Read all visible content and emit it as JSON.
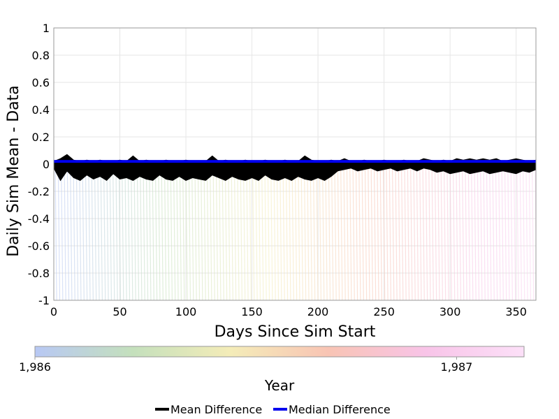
{
  "chart_data": {
    "type": "line",
    "xlabel": "Days Since Sim Start",
    "ylabel": "Daily Sim Mean - Data",
    "xlim": [
      0,
      365
    ],
    "ylim": [
      -1,
      1
    ],
    "x_ticks": [
      "0",
      "50",
      "100",
      "150",
      "200",
      "250",
      "300",
      "350"
    ],
    "y_ticks": [
      "1",
      "0.8",
      "0.6",
      "0.4",
      "0.2",
      "0",
      "-0.2",
      "-0.4",
      "-0.6",
      "-0.8",
      "-1"
    ],
    "grid": true,
    "series": [
      {
        "name": "Mean Difference",
        "color": "#000000",
        "x": [
          0,
          5,
          10,
          15,
          20,
          25,
          30,
          35,
          40,
          45,
          50,
          55,
          60,
          65,
          70,
          75,
          80,
          85,
          90,
          95,
          100,
          105,
          110,
          115,
          120,
          125,
          130,
          135,
          140,
          145,
          150,
          155,
          160,
          165,
          170,
          175,
          180,
          185,
          190,
          195,
          200,
          205,
          210,
          215,
          220,
          225,
          230,
          235,
          240,
          245,
          250,
          255,
          260,
          265,
          270,
          275,
          280,
          285,
          290,
          295,
          300,
          305,
          310,
          315,
          320,
          325,
          330,
          335,
          340,
          345,
          350,
          355,
          360,
          365
        ],
        "lower": [
          -0.03,
          -0.12,
          -0.05,
          -0.1,
          -0.12,
          -0.08,
          -0.11,
          -0.09,
          -0.12,
          -0.07,
          -0.11,
          -0.1,
          -0.12,
          -0.09,
          -0.11,
          -0.12,
          -0.08,
          -0.11,
          -0.12,
          -0.09,
          -0.12,
          -0.1,
          -0.11,
          -0.12,
          -0.08,
          -0.1,
          -0.12,
          -0.09,
          -0.11,
          -0.12,
          -0.1,
          -0.12,
          -0.08,
          -0.11,
          -0.12,
          -0.1,
          -0.12,
          -0.09,
          -0.11,
          -0.12,
          -0.1,
          -0.12,
          -0.09,
          -0.05,
          -0.04,
          -0.03,
          -0.05,
          -0.04,
          -0.03,
          -0.05,
          -0.04,
          -0.03,
          -0.05,
          -0.04,
          -0.03,
          -0.05,
          -0.03,
          -0.04,
          -0.06,
          -0.05,
          -0.07,
          -0.06,
          -0.05,
          -0.07,
          -0.06,
          -0.05,
          -0.07,
          -0.06,
          -0.05,
          -0.06,
          -0.07,
          -0.05,
          -0.06,
          -0.04
        ],
        "upper": [
          0.02,
          0.04,
          0.07,
          0.03,
          0.02,
          0.03,
          0.02,
          0.03,
          0.02,
          0.02,
          0.03,
          0.02,
          0.06,
          0.02,
          0.03,
          0.02,
          0.02,
          0.03,
          0.02,
          0.02,
          0.03,
          0.02,
          0.02,
          0.02,
          0.06,
          0.02,
          0.03,
          0.02,
          0.02,
          0.03,
          0.02,
          0.02,
          0.03,
          0.02,
          0.02,
          0.03,
          0.02,
          0.02,
          0.06,
          0.03,
          0.02,
          0.02,
          0.03,
          0.02,
          0.04,
          0.02,
          0.02,
          0.03,
          0.02,
          0.02,
          0.03,
          0.02,
          0.02,
          0.03,
          0.02,
          0.02,
          0.04,
          0.03,
          0.02,
          0.03,
          0.02,
          0.04,
          0.03,
          0.04,
          0.03,
          0.04,
          0.03,
          0.04,
          0.02,
          0.03,
          0.04,
          0.03,
          0.02,
          0.03
        ]
      },
      {
        "name": "Median Difference",
        "color": "#0000ee",
        "x": [
          0,
          365
        ],
        "y": [
          0.02,
          0.02
        ]
      }
    ],
    "colorbar": {
      "title": "Year",
      "tick_labels": [
        "1,986",
        "1,987"
      ],
      "tick_values": [
        1986,
        1987
      ],
      "range": [
        1986,
        1987.16
      ],
      "colors": [
        "#b8c8f4",
        "#c4e0bc",
        "#f4ecb8",
        "#f8c4b4",
        "#f8c4e8",
        "#fce0f8"
      ]
    },
    "legend": {
      "placement": "bottom",
      "entries": [
        "Mean Difference",
        "Median Difference"
      ]
    }
  }
}
